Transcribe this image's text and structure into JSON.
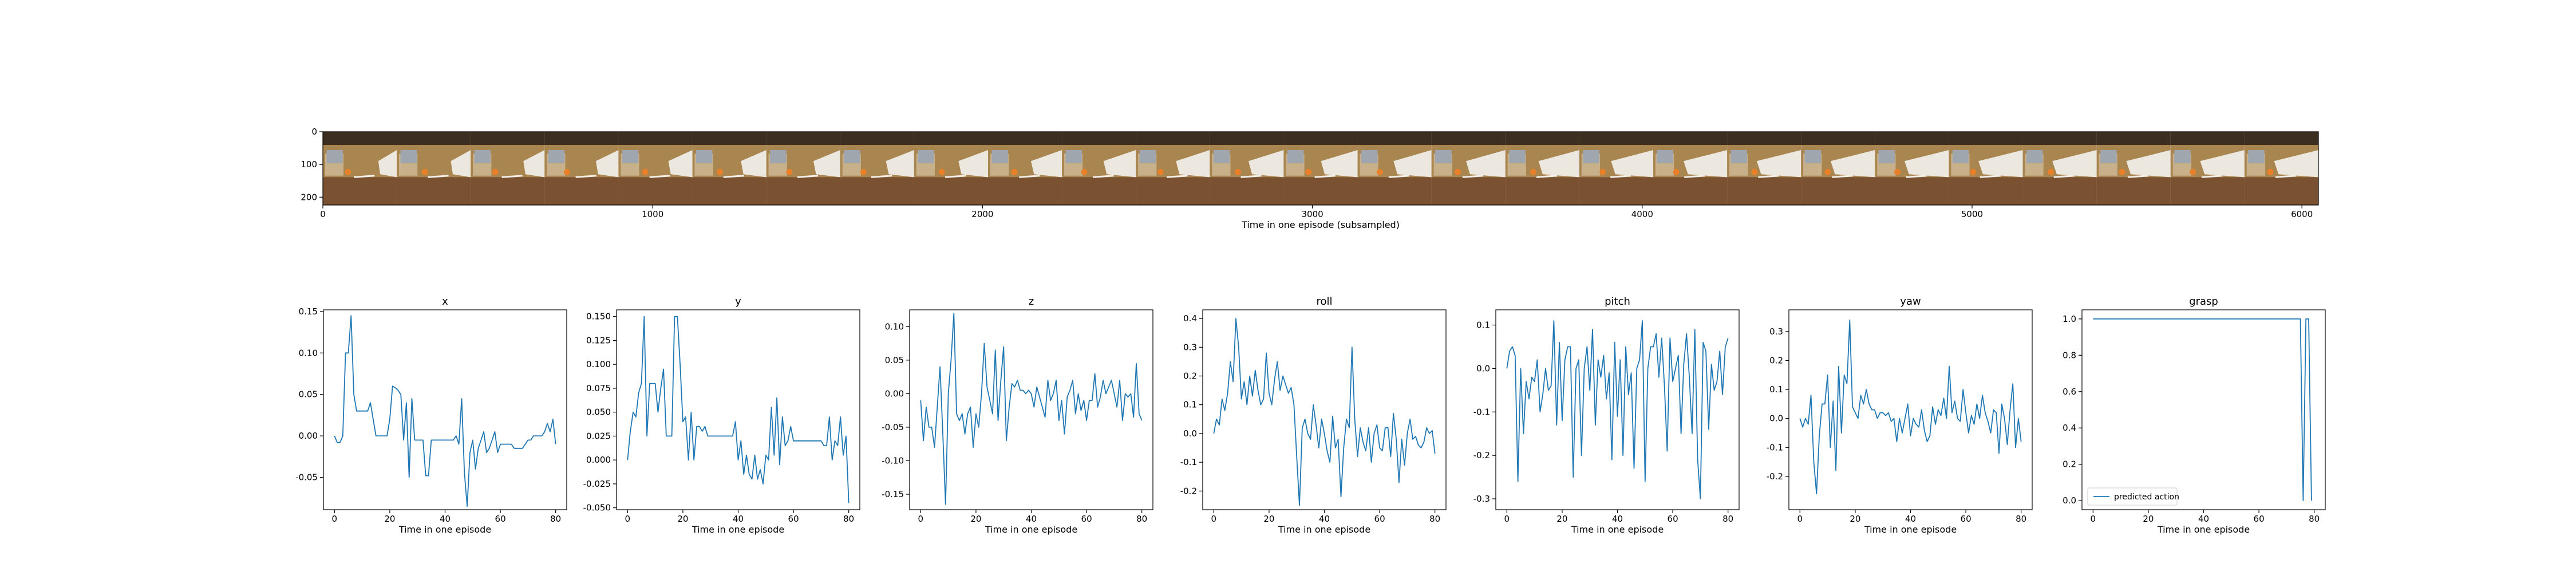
{
  "filmstrip": {
    "xlabel": "Time in one episode (subsampled)",
    "x_ticks": [
      "0",
      "1000",
      "2000",
      "3000",
      "4000",
      "5000",
      "6000"
    ],
    "y_ticks": [
      "0",
      "100",
      "200"
    ],
    "xlim": [
      0,
      6050
    ],
    "ylim": [
      0,
      224
    ],
    "frame_count": 27,
    "frame_colors": {
      "wood": "#7a5232",
      "wall": "#a9854f",
      "ball": "#e8802a",
      "hand": "#ece7df",
      "ceiling": "#3c2f22"
    }
  },
  "colors": {
    "line": "#1f77b4",
    "axis": "#000000"
  },
  "chart_data": [
    {
      "type": "line",
      "title": "x",
      "xlabel": "Time in one episode",
      "xlim": [
        -4,
        84
      ],
      "ylim": [
        -0.089,
        0.152
      ],
      "x_ticks": [
        "0",
        "20",
        "40",
        "60",
        "80"
      ],
      "y_ticks": [
        "0.15",
        "0.10",
        "0.05",
        "0.00",
        "-0.05"
      ],
      "series": [
        {
          "x_start": 0,
          "x_step": 1,
          "values": [
            0.0,
            -0.008,
            -0.008,
            0.0,
            0.1,
            0.1,
            0.145,
            0.05,
            0.03,
            0.03,
            0.03,
            0.03,
            0.03,
            0.04,
            0.02,
            0.0,
            0.0,
            0.0,
            0.0,
            0.0,
            0.02,
            0.06,
            0.058,
            0.055,
            0.05,
            -0.005,
            0.04,
            -0.05,
            0.045,
            -0.005,
            -0.005,
            -0.005,
            -0.005,
            -0.048,
            -0.048,
            -0.005,
            -0.005,
            -0.005,
            -0.005,
            -0.005,
            -0.005,
            -0.005,
            -0.005,
            -0.005,
            0.0,
            -0.01,
            0.045,
            -0.045,
            -0.085,
            -0.02,
            -0.005,
            -0.04,
            -0.015,
            -0.005,
            0.005,
            -0.02,
            -0.015,
            -0.005,
            0.005,
            -0.02,
            -0.01,
            -0.01,
            -0.01,
            -0.01,
            -0.01,
            -0.015,
            -0.015,
            -0.015,
            -0.015,
            -0.01,
            -0.005,
            -0.005,
            0.0,
            0.0,
            0.0,
            0.0,
            0.005,
            0.015,
            0.005,
            0.02,
            -0.01
          ]
        }
      ]
    },
    {
      "type": "line",
      "title": "y",
      "xlabel": "Time in one episode",
      "xlim": [
        -4,
        84
      ],
      "ylim": [
        -0.052,
        0.157
      ],
      "x_ticks": [
        "0",
        "20",
        "40",
        "60",
        "80"
      ],
      "y_ticks": [
        "0.150",
        "0.125",
        "0.100",
        "0.075",
        "0.050",
        "0.025",
        "0.000",
        "-0.025",
        "-0.050"
      ],
      "series": [
        {
          "x_start": 0,
          "x_step": 1,
          "values": [
            0.0,
            0.03,
            0.05,
            0.045,
            0.07,
            0.08,
            0.15,
            0.025,
            0.08,
            0.08,
            0.08,
            0.05,
            0.075,
            0.095,
            0.025,
            0.025,
            0.025,
            0.15,
            0.15,
            0.1,
            0.04,
            0.045,
            0.0,
            0.05,
            0.0,
            0.035,
            0.035,
            0.03,
            0.035,
            0.025,
            0.025,
            0.025,
            0.025,
            0.025,
            0.025,
            0.025,
            0.025,
            0.025,
            0.025,
            0.04,
            0.0,
            0.02,
            -0.015,
            0.005,
            -0.015,
            -0.02,
            0.005,
            -0.02,
            -0.01,
            -0.025,
            0.005,
            0.0,
            0.055,
            0.005,
            0.065,
            -0.005,
            0.045,
            0.015,
            0.02,
            0.035,
            0.02,
            0.02,
            0.02,
            0.02,
            0.02,
            0.02,
            0.02,
            0.02,
            0.02,
            0.02,
            0.02,
            0.015,
            0.015,
            0.045,
            0.0,
            0.02,
            0.015,
            0.045,
            0.005,
            0.025,
            -0.045
          ]
        }
      ]
    },
    {
      "type": "line",
      "title": "z",
      "xlabel": "Time in one episode",
      "xlim": [
        -4,
        84
      ],
      "ylim": [
        -0.173,
        0.125
      ],
      "x_ticks": [
        "0",
        "20",
        "40",
        "60",
        "80"
      ],
      "y_ticks": [
        "0.10",
        "0.05",
        "0.00",
        "-0.05",
        "-0.10",
        "-0.15"
      ],
      "series": [
        {
          "x_start": 0,
          "x_step": 1,
          "values": [
            -0.01,
            -0.07,
            -0.02,
            -0.05,
            -0.05,
            -0.08,
            -0.02,
            0.04,
            -0.06,
            -0.165,
            0.0,
            0.05,
            0.12,
            -0.03,
            -0.04,
            -0.03,
            -0.06,
            -0.03,
            -0.02,
            -0.08,
            -0.03,
            -0.05,
            0.0,
            0.075,
            0.01,
            -0.01,
            -0.03,
            0.065,
            -0.04,
            0.02,
            0.07,
            -0.07,
            -0.02,
            0.015,
            0.01,
            0.02,
            0.005,
            0.005,
            0.0,
            0.005,
            0.0,
            -0.02,
            0.01,
            -0.005,
            -0.02,
            -0.035,
            0.02,
            -0.01,
            0.0,
            0.02,
            -0.04,
            -0.01,
            -0.06,
            -0.005,
            0.005,
            0.02,
            -0.03,
            0.0,
            -0.025,
            -0.01,
            -0.04,
            -0.01,
            -0.01,
            0.03,
            -0.02,
            -0.005,
            0.02,
            0.0,
            0.01,
            0.02,
            0.0,
            -0.02,
            0.02,
            -0.04,
            0.0,
            -0.005,
            0.0,
            -0.035,
            0.045,
            -0.03,
            -0.04
          ]
        }
      ]
    },
    {
      "type": "line",
      "title": "roll",
      "xlabel": "Time in one episode",
      "xlim": [
        -4,
        84
      ],
      "ylim": [
        -0.265,
        0.43
      ],
      "x_ticks": [
        "0",
        "20",
        "40",
        "60",
        "80"
      ],
      "y_ticks": [
        "0.4",
        "0.3",
        "0.2",
        "0.1",
        "0.0",
        "-0.1",
        "-0.2"
      ],
      "series": [
        {
          "x_start": 0,
          "x_step": 1,
          "values": [
            0.0,
            0.05,
            0.03,
            0.12,
            0.08,
            0.14,
            0.25,
            0.18,
            0.4,
            0.3,
            0.12,
            0.18,
            0.1,
            0.2,
            0.13,
            0.22,
            0.15,
            0.1,
            0.12,
            0.28,
            0.14,
            0.1,
            0.19,
            0.25,
            0.15,
            0.2,
            0.17,
            0.14,
            0.16,
            0.1,
            -0.08,
            -0.25,
            0.02,
            0.05,
            0.0,
            -0.02,
            0.1,
            0.03,
            -0.05,
            0.05,
            0.0,
            -0.06,
            -0.1,
            0.06,
            -0.05,
            -0.02,
            -0.22,
            -0.05,
            0.05,
            0.02,
            0.3,
            0.05,
            -0.08,
            0.02,
            -0.03,
            -0.06,
            0.02,
            -0.1,
            0.0,
            0.03,
            -0.05,
            -0.06,
            0.02,
            0.02,
            -0.08,
            0.07,
            -0.02,
            -0.17,
            -0.02,
            -0.11,
            0.0,
            0.05,
            -0.02,
            -0.01,
            -0.04,
            -0.05,
            -0.03,
            0.02,
            0.0,
            0.01,
            -0.07
          ]
        }
      ]
    },
    {
      "type": "line",
      "title": "pitch",
      "xlabel": "Time in one episode",
      "xlim": [
        -4,
        84
      ],
      "ylim": [
        -0.325,
        0.135
      ],
      "x_ticks": [
        "0",
        "20",
        "40",
        "60",
        "80"
      ],
      "y_ticks": [
        "0.1",
        "0.0",
        "-0.1",
        "-0.2",
        "-0.3"
      ],
      "series": [
        {
          "x_start": 0,
          "x_step": 1,
          "values": [
            0.0,
            0.04,
            0.05,
            0.03,
            -0.26,
            0.0,
            -0.15,
            -0.03,
            -0.07,
            -0.02,
            -0.03,
            0.02,
            -0.1,
            -0.06,
            0.0,
            -0.05,
            -0.04,
            0.11,
            -0.13,
            0.06,
            -0.12,
            0.02,
            0.05,
            0.05,
            -0.25,
            0.0,
            0.02,
            -0.2,
            0.0,
            0.05,
            -0.05,
            0.09,
            -0.13,
            0.02,
            -0.02,
            0.03,
            -0.07,
            -0.01,
            -0.21,
            0.06,
            -0.11,
            0.02,
            -0.2,
            0.05,
            -0.06,
            -0.01,
            -0.23,
            0.0,
            0.02,
            0.11,
            -0.26,
            0.0,
            0.05,
            0.05,
            0.08,
            -0.02,
            0.07,
            -0.04,
            -0.19,
            0.07,
            -0.03,
            0.0,
            0.03,
            -0.15,
            0.01,
            0.08,
            -0.02,
            -0.15,
            0.09,
            -0.21,
            -0.3,
            0.06,
            0.04,
            -0.14,
            0.01,
            -0.05,
            -0.03,
            0.04,
            -0.06,
            0.05,
            0.07
          ]
        }
      ]
    },
    {
      "type": "line",
      "title": "yaw",
      "xlabel": "Time in one episode",
      "xlim": [
        -4,
        84
      ],
      "ylim": [
        -0.315,
        0.375
      ],
      "x_ticks": [
        "0",
        "20",
        "40",
        "60",
        "80"
      ],
      "y_ticks": [
        "0.3",
        "0.2",
        "0.1",
        "0.0",
        "-0.1",
        "-0.2"
      ],
      "series": [
        {
          "x_start": 0,
          "x_step": 1,
          "values": [
            0.0,
            -0.03,
            0.0,
            -0.02,
            0.08,
            -0.15,
            -0.26,
            -0.06,
            0.05,
            0.05,
            0.15,
            -0.1,
            0.06,
            -0.18,
            0.18,
            -0.05,
            0.15,
            0.12,
            0.34,
            0.04,
            0.02,
            0.0,
            0.08,
            0.05,
            0.1,
            0.05,
            0.03,
            0.03,
            0.0,
            0.02,
            0.02,
            0.01,
            0.02,
            -0.01,
            0.0,
            -0.08,
            0.0,
            -0.05,
            0.0,
            0.05,
            -0.06,
            0.0,
            -0.02,
            -0.03,
            0.03,
            -0.04,
            -0.08,
            -0.06,
            0.04,
            -0.02,
            0.03,
            0.01,
            0.07,
            0.0,
            0.18,
            0.02,
            0.06,
            0.0,
            -0.01,
            0.1,
            0.02,
            -0.05,
            0.01,
            -0.02,
            0.05,
            0.0,
            0.08,
            0.02,
            -0.01,
            -0.05,
            0.03,
            0.02,
            -0.12,
            0.05,
            0.0,
            -0.09,
            0.03,
            0.12,
            -0.1,
            0.0,
            -0.08
          ]
        }
      ]
    },
    {
      "type": "line",
      "title": "grasp",
      "xlabel": "Time in one episode",
      "xlim": [
        -4,
        84
      ],
      "ylim": [
        -0.05,
        1.05
      ],
      "x_ticks": [
        "0",
        "20",
        "40",
        "60",
        "80"
      ],
      "y_ticks": [
        "1.0",
        "0.8",
        "0.6",
        "0.4",
        "0.2",
        "0.0"
      ],
      "legend": {
        "label": "predicted action",
        "position": "lower left"
      },
      "series": [
        {
          "x_start": 0,
          "x_step": 1,
          "values": [
            1.0,
            1.0,
            1.0,
            1.0,
            1.0,
            1.0,
            1.0,
            1.0,
            1.0,
            1.0,
            1.0,
            1.0,
            1.0,
            1.0,
            1.0,
            1.0,
            1.0,
            1.0,
            1.0,
            1.0,
            1.0,
            1.0,
            1.0,
            1.0,
            1.0,
            1.0,
            1.0,
            1.0,
            1.0,
            1.0,
            1.0,
            1.0,
            1.0,
            1.0,
            1.0,
            1.0,
            1.0,
            1.0,
            1.0,
            1.0,
            1.0,
            1.0,
            1.0,
            1.0,
            1.0,
            1.0,
            1.0,
            1.0,
            1.0,
            1.0,
            1.0,
            1.0,
            1.0,
            1.0,
            1.0,
            1.0,
            1.0,
            1.0,
            1.0,
            1.0,
            1.0,
            1.0,
            1.0,
            1.0,
            1.0,
            1.0,
            1.0,
            1.0,
            1.0,
            1.0,
            1.0,
            1.0,
            1.0,
            1.0,
            1.0,
            1.0,
            0.0,
            1.0,
            1.0,
            0.0
          ]
        }
      ]
    }
  ]
}
